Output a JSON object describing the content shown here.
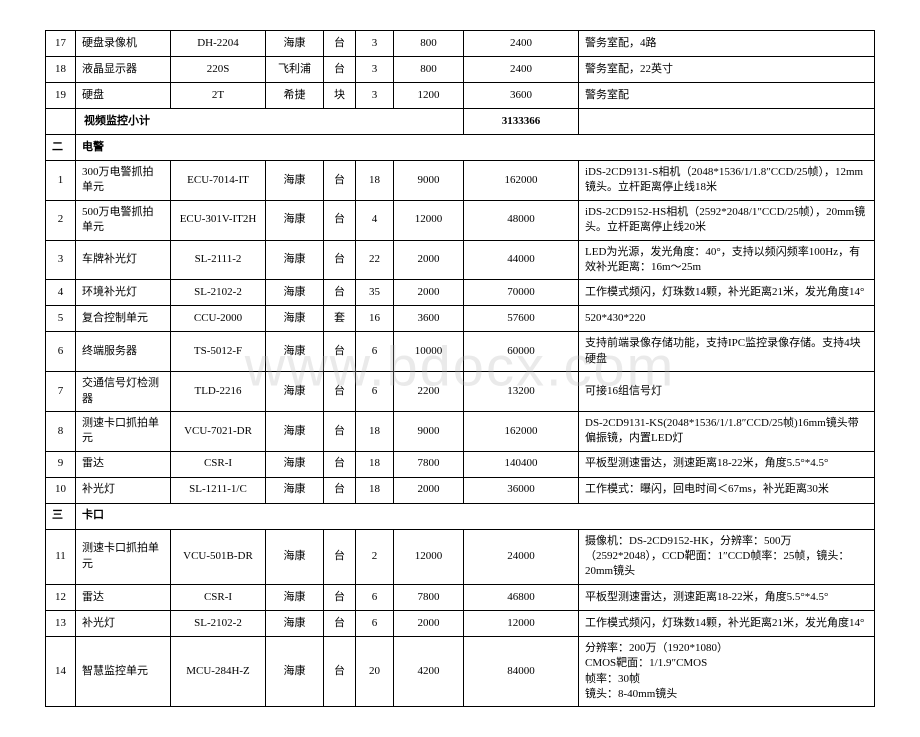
{
  "watermark": "www.bdocx.com",
  "sections": {
    "video": {
      "rows": [
        {
          "idx": "17",
          "name": "硬盘录像机",
          "model": "DH-2204",
          "brand": "海康",
          "unit": "台",
          "qty": "3",
          "price": "800",
          "total": "2400",
          "remark": "警务室配，4路"
        },
        {
          "idx": "18",
          "name": "液晶显示器",
          "model": "220S",
          "brand": "飞利浦",
          "unit": "台",
          "qty": "3",
          "price": "800",
          "total": "2400",
          "remark": "警务室配，22英寸"
        },
        {
          "idx": "19",
          "name": "硬盘",
          "model": "2T",
          "brand": "希捷",
          "unit": "块",
          "qty": "3",
          "price": "1200",
          "total": "3600",
          "remark": "警务室配"
        }
      ],
      "subtotal_label": "视频监控小计",
      "subtotal_value": "3133366"
    },
    "epolice": {
      "idx": "二",
      "title": "电警",
      "rows": [
        {
          "idx": "1",
          "name": "300万电警抓拍单元",
          "model": "ECU-7014-IT",
          "brand": "海康",
          "unit": "台",
          "qty": "18",
          "price": "9000",
          "total": "162000",
          "remark": "iDS-2CD9131-S相机（2048*1536/1/1.8″CCD/25帧），12mm镜头。立杆距离停止线18米"
        },
        {
          "idx": "2",
          "name": "500万电警抓拍单元",
          "model": "ECU-301V-IT2H",
          "brand": "海康",
          "unit": "台",
          "qty": "4",
          "price": "12000",
          "total": "48000",
          "remark": "iDS-2CD9152-HS相机（2592*2048/1″CCD/25帧），20mm镜头。立杆距离停止线20米"
        },
        {
          "idx": "3",
          "name": "车牌补光灯",
          "model": "SL-2111-2",
          "brand": "海康",
          "unit": "台",
          "qty": "22",
          "price": "2000",
          "total": "44000",
          "remark": "LED为光源，发光角度：40°，支持以频闪频率100Hz，有效补光距离：16m～25m"
        },
        {
          "idx": "4",
          "name": "环境补光灯",
          "model": "SL-2102-2",
          "brand": "海康",
          "unit": "台",
          "qty": "35",
          "price": "2000",
          "total": "70000",
          "remark": "工作模式频闪，灯珠数14颗，补光距离21米，发光角度14°"
        },
        {
          "idx": "5",
          "name": "复合控制单元",
          "model": "CCU-2000",
          "brand": "海康",
          "unit": "套",
          "qty": "16",
          "price": "3600",
          "total": "57600",
          "remark": "520*430*220"
        },
        {
          "idx": "6",
          "name": "终端服务器",
          "model": "TS-5012-F",
          "brand": "海康",
          "unit": "台",
          "qty": "6",
          "price": "10000",
          "total": "60000",
          "remark": "支持前端录像存储功能，支持IPC监控录像存储。支持4块硬盘"
        },
        {
          "idx": "7",
          "name": "交通信号灯检测器",
          "model": "TLD-2216",
          "brand": "海康",
          "unit": "台",
          "qty": "6",
          "price": "2200",
          "total": "13200",
          "remark": "可接16组信号灯"
        },
        {
          "idx": "8",
          "name": "测速卡口抓拍单元",
          "model": "VCU-7021-DR",
          "brand": "海康",
          "unit": "台",
          "qty": "18",
          "price": "9000",
          "total": "162000",
          "remark": "DS-2CD9131-KS(2048*1536/1/1.8″CCD/25帧)16mm镜头带偏振镜，内置LED灯"
        },
        {
          "idx": "9",
          "name": "雷达",
          "model": "CSR-I",
          "brand": "海康",
          "unit": "台",
          "qty": "18",
          "price": "7800",
          "total": "140400",
          "remark": "平板型测速雷达，测速距离18-22米，角度5.5°*4.5°"
        },
        {
          "idx": "10",
          "name": "补光灯",
          "model": "SL-1211-1/C",
          "brand": "海康",
          "unit": "台",
          "qty": "18",
          "price": "2000",
          "total": "36000",
          "remark": "工作模式：曝闪，回电时间＜67ms，补光距离30米"
        }
      ]
    },
    "bayonet": {
      "idx": "三",
      "title": "卡口",
      "rows": [
        {
          "idx": "11",
          "name": "测速卡口抓拍单元",
          "model": "VCU-501B-DR",
          "brand": "海康",
          "unit": "台",
          "qty": "2",
          "price": "12000",
          "total": "24000",
          "remark": "摄像机：DS-2CD9152-HK，分辨率：500万（2592*2048），CCD靶面：1″CCD帧率：25帧，镜头：20mm镜头"
        },
        {
          "idx": "12",
          "name": "雷达",
          "model": "CSR-I",
          "brand": "海康",
          "unit": "台",
          "qty": "6",
          "price": "7800",
          "total": "46800",
          "remark": "平板型测速雷达，测速距离18-22米，角度5.5°*4.5°"
        },
        {
          "idx": "13",
          "name": "补光灯",
          "model": "SL-2102-2",
          "brand": "海康",
          "unit": "台",
          "qty": "6",
          "price": "2000",
          "total": "12000",
          "remark": "工作模式频闪，灯珠数14颗，补光距离21米，发光角度14°"
        },
        {
          "idx": "14",
          "name": "智慧监控单元",
          "model": "MCU-284H-Z",
          "brand": "海康",
          "unit": "台",
          "qty": "20",
          "price": "4200",
          "total": "84000",
          "remark": "分辨率：200万（1920*1080）\nCMOS靶面：1/1.9″CMOS\n帧率：30帧\n镜头：8-40mm镜头"
        }
      ]
    }
  }
}
